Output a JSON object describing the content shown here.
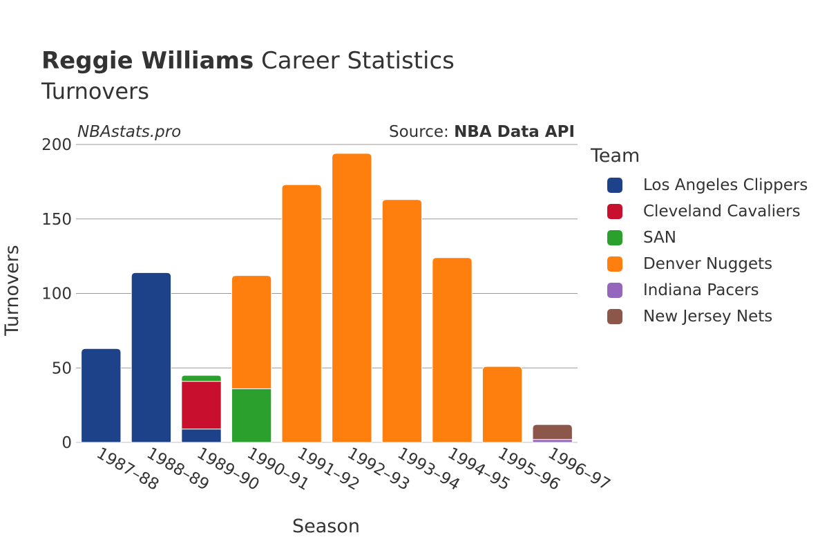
{
  "header": {
    "player": "Reggie Williams",
    "title_rest": "Career Statistics",
    "subtitle": "Turnovers",
    "watermark": "NBAstats.pro",
    "source_prefix": "Source: ",
    "source_name": "NBA Data API"
  },
  "legend": {
    "title": "Team",
    "items": [
      {
        "label": "Los Angeles Clippers",
        "color": "#1d428a"
      },
      {
        "label": "Cleveland Cavaliers",
        "color": "#c8102e"
      },
      {
        "label": "SAN",
        "color": "#2ca02c"
      },
      {
        "label": "Denver Nuggets",
        "color": "#ff7f0e"
      },
      {
        "label": "Indiana Pacers",
        "color": "#9467bd"
      },
      {
        "label": "New Jersey Nets",
        "color": "#8c564b"
      }
    ]
  },
  "chart_data": {
    "type": "bar",
    "stacked": true,
    "xlabel": "Season",
    "ylabel": "Turnovers",
    "ylim": [
      0,
      200
    ],
    "yticks": [
      0,
      50,
      100,
      150,
      200
    ],
    "grid": true,
    "legend_position": "right",
    "categories": [
      "1987–88",
      "1988–89",
      "1989–90",
      "1990–91",
      "1991–92",
      "1992–93",
      "1993–94",
      "1994–95",
      "1995–96",
      "1996–97"
    ],
    "series": [
      {
        "name": "Los Angeles Clippers",
        "color": "#1d428a",
        "values": [
          63,
          114,
          9,
          0,
          0,
          0,
          0,
          0,
          0,
          0
        ]
      },
      {
        "name": "Cleveland Cavaliers",
        "color": "#c8102e",
        "values": [
          0,
          0,
          32,
          0,
          0,
          0,
          0,
          0,
          0,
          0
        ]
      },
      {
        "name": "SAN",
        "color": "#2ca02c",
        "values": [
          0,
          0,
          4,
          36,
          0,
          0,
          0,
          0,
          0,
          0
        ]
      },
      {
        "name": "Denver Nuggets",
        "color": "#ff7f0e",
        "values": [
          0,
          0,
          0,
          76,
          173,
          194,
          163,
          124,
          51,
          0
        ]
      },
      {
        "name": "Indiana Pacers",
        "color": "#9467bd",
        "values": [
          0,
          0,
          0,
          0,
          0,
          0,
          0,
          0,
          0,
          2
        ]
      },
      {
        "name": "New Jersey Nets",
        "color": "#8c564b",
        "values": [
          0,
          0,
          0,
          0,
          0,
          0,
          0,
          0,
          0,
          10
        ]
      }
    ]
  }
}
